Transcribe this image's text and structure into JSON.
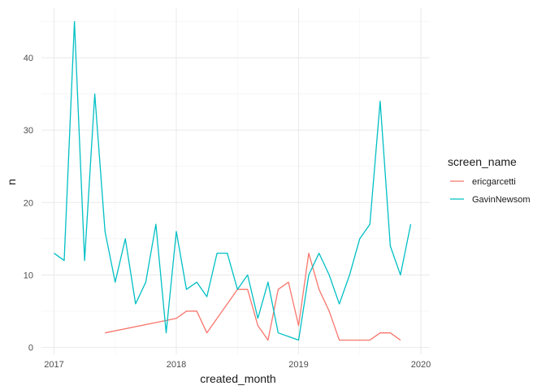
{
  "chart_data": {
    "type": "line",
    "title": "",
    "xlabel": "created_month",
    "ylabel": "n",
    "xlim": [
      2017,
      2020
    ],
    "ylim": [
      0,
      45
    ],
    "x_ticks": [
      2017,
      2018,
      2019,
      2020
    ],
    "x_tick_labels": [
      "2017",
      "2018",
      "2019",
      "2020"
    ],
    "y_ticks": [
      0,
      10,
      20,
      30,
      40
    ],
    "y_tick_labels": [
      "0",
      "10",
      "20",
      "30",
      "40"
    ],
    "grid": true,
    "legend": {
      "title": "screen_name",
      "position": "right"
    },
    "series": [
      {
        "name": "ericgarcetti",
        "color": "#F8766D",
        "x": [
          2017.417,
          2018.0,
          2018.083,
          2018.167,
          2018.25,
          2018.5,
          2018.583,
          2018.667,
          2018.75,
          2018.833,
          2018.917,
          2019.0,
          2019.083,
          2019.167,
          2019.25,
          2019.333,
          2019.5,
          2019.583,
          2019.667,
          2019.75,
          2019.833
        ],
        "values": [
          2,
          4,
          5,
          5,
          2,
          8,
          8,
          3,
          1,
          8,
          9,
          3,
          13,
          8,
          5,
          1,
          1,
          1,
          2,
          2,
          1
        ]
      },
      {
        "name": "GavinNewsom",
        "color": "#00BFC4",
        "x": [
          2017.0,
          2017.083,
          2017.167,
          2017.25,
          2017.333,
          2017.417,
          2017.5,
          2017.583,
          2017.667,
          2017.75,
          2017.833,
          2017.917,
          2018.0,
          2018.083,
          2018.167,
          2018.25,
          2018.333,
          2018.417,
          2018.5,
          2018.583,
          2018.667,
          2018.75,
          2018.833,
          2018.917,
          2019.0,
          2019.083,
          2019.167,
          2019.25,
          2019.333,
          2019.417,
          2019.5,
          2019.583,
          2019.667,
          2019.75,
          2019.833,
          2019.917
        ],
        "values": [
          13,
          12,
          45,
          12,
          35,
          16,
          9,
          15,
          6,
          9,
          17,
          2,
          16,
          8,
          9,
          7,
          13,
          13,
          8,
          10,
          4,
          9,
          2,
          1.5,
          1,
          10,
          13,
          10,
          6,
          10,
          15,
          17,
          34,
          14,
          10,
          17
        ]
      }
    ]
  }
}
